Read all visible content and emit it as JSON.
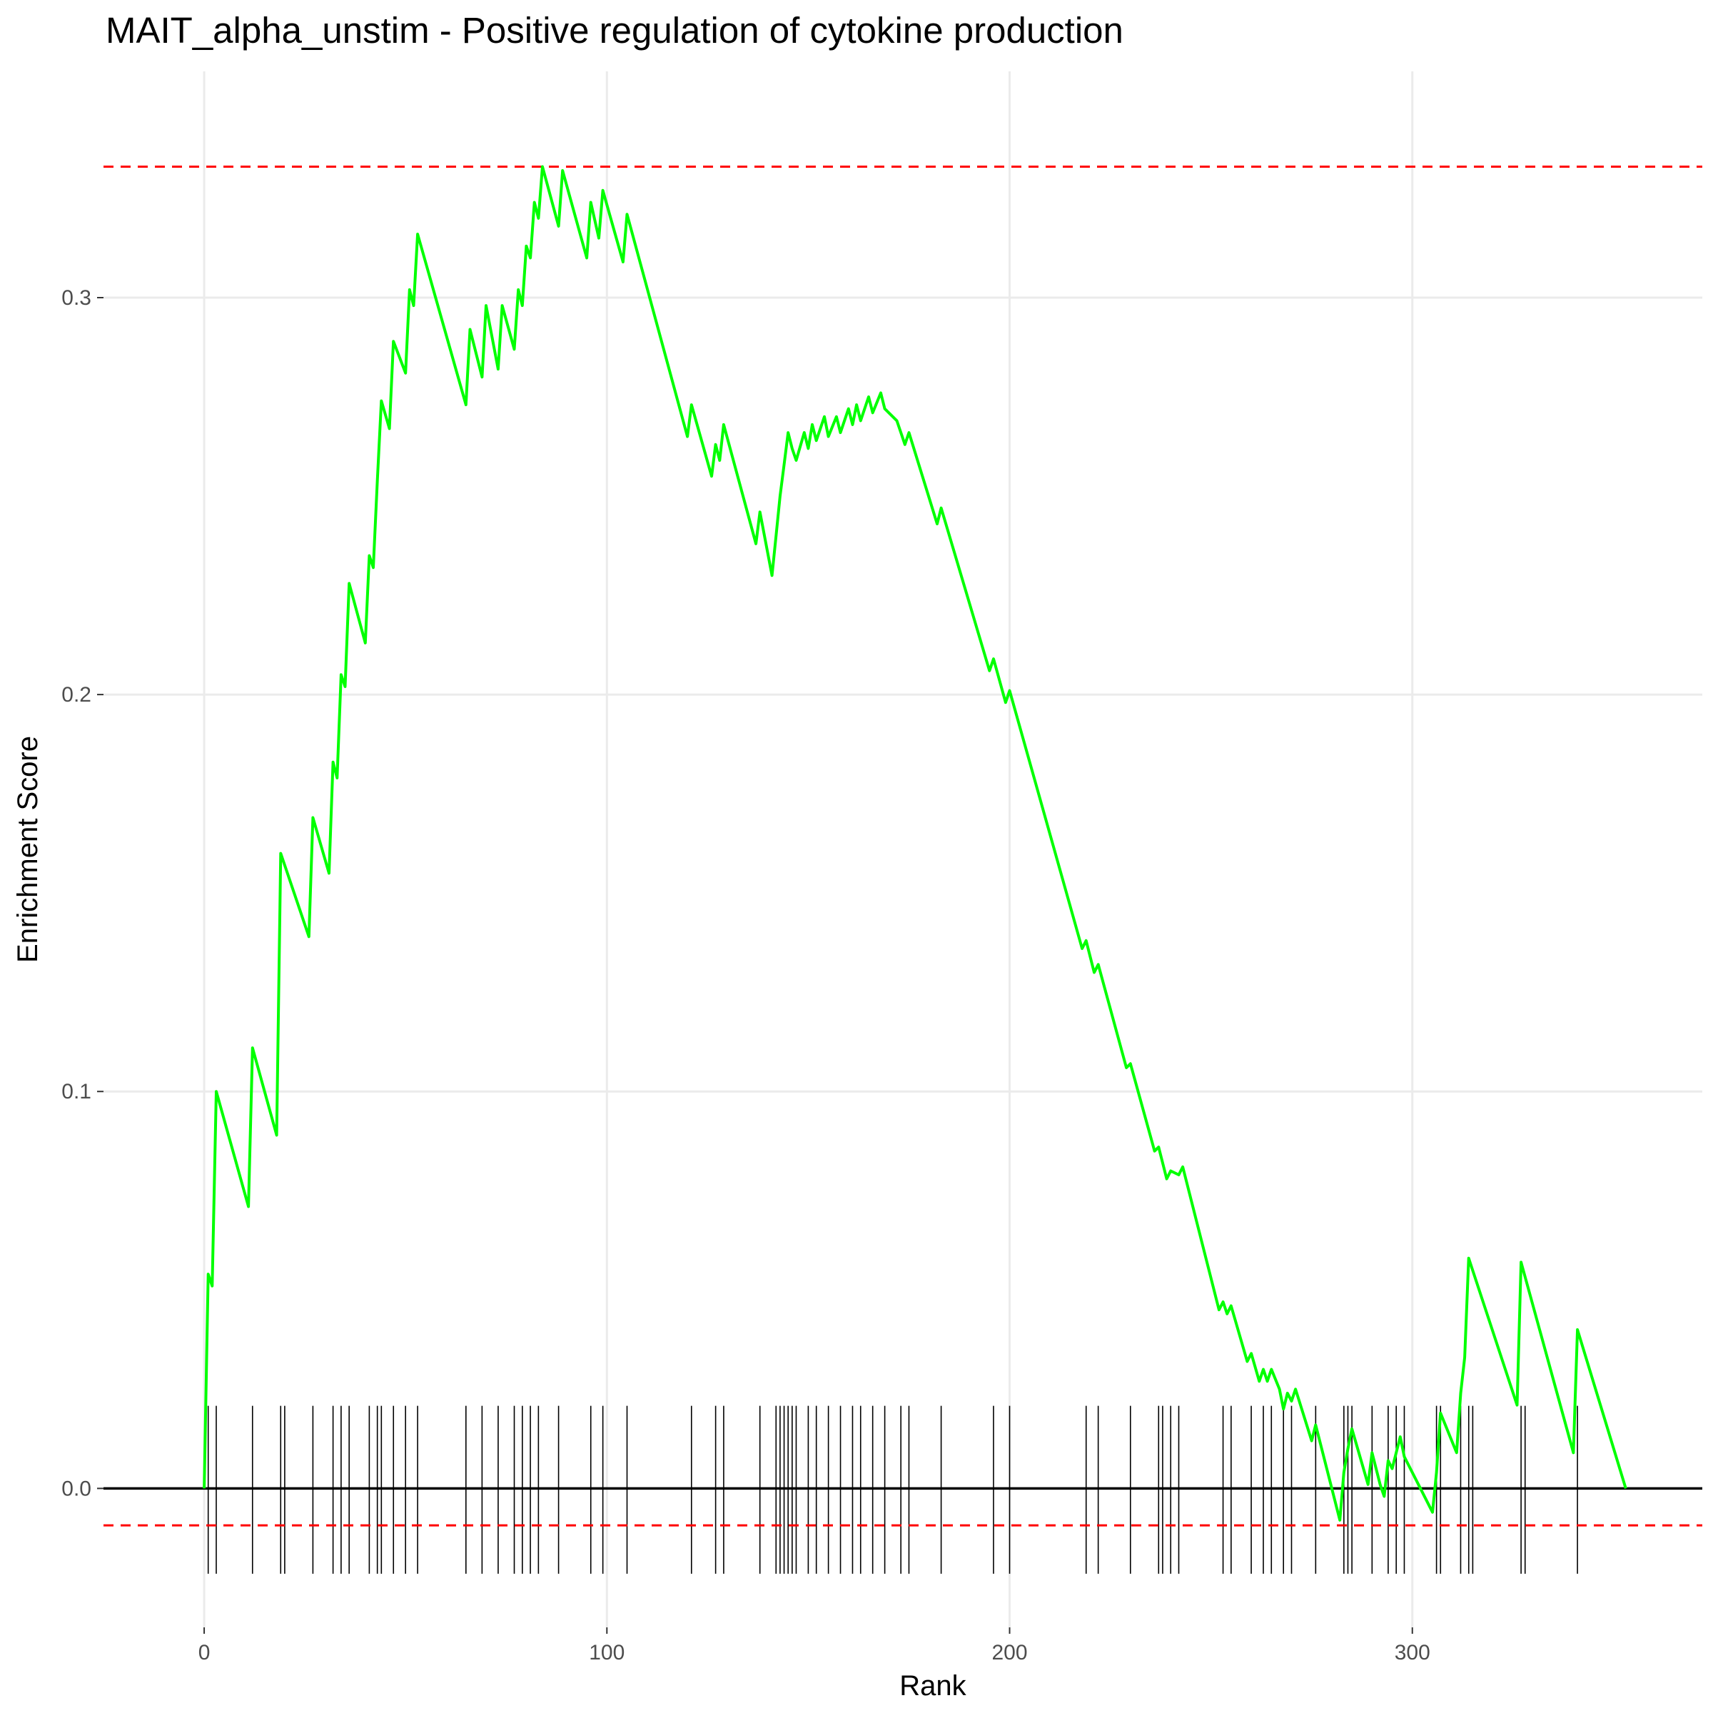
{
  "chart_data": {
    "type": "line",
    "title": "MAIT_alpha_unstim - Positive regulation of cytokine production",
    "xlabel": "Rank",
    "ylabel": "Enrichment Score",
    "xlim": [
      -25,
      372
    ],
    "ylim": [
      -0.035,
      0.357
    ],
    "x_ticks": [
      0,
      100,
      200,
      300
    ],
    "y_ticks": [
      0.0,
      0.1,
      0.2,
      0.3
    ],
    "x_tick_labels": [
      "0",
      "100",
      "200",
      "300"
    ],
    "y_tick_labels": [
      "0.0",
      "0.1",
      "0.2",
      "0.3"
    ],
    "grid": true,
    "legend": "none",
    "colors": {
      "curve": "#00ff00",
      "threshold": "#ff0000",
      "zero_line": "#000000",
      "ticks": "#000000"
    },
    "thresholds": {
      "max": 0.333,
      "min": -0.0093
    },
    "series": [
      {
        "x": [
          0,
          1,
          2,
          3,
          11,
          12,
          18,
          19,
          26,
          27,
          31,
          32,
          33,
          34,
          35,
          36,
          40,
          41,
          42,
          43,
          44,
          46,
          47,
          50,
          51,
          52,
          53,
          65,
          66,
          69,
          70,
          73,
          74,
          77,
          78,
          79,
          80,
          81,
          82,
          83,
          84,
          88,
          89,
          95,
          96,
          98,
          99,
          104,
          105,
          120,
          121,
          126,
          127,
          128,
          129,
          137,
          138,
          141,
          142,
          143,
          144,
          145,
          146,
          147,
          149,
          150,
          151,
          152,
          154,
          155,
          157,
          158,
          160,
          161,
          162,
          163,
          165,
          166,
          168,
          169,
          172,
          173,
          174,
          175,
          182,
          183,
          195,
          196,
          199,
          200,
          218,
          219,
          221,
          222,
          229,
          230,
          236,
          237,
          239,
          240,
          242,
          243,
          252,
          253,
          254,
          255,
          259,
          260,
          262,
          263,
          264,
          265,
          267,
          268,
          269,
          270,
          271,
          275,
          276,
          282,
          283,
          284,
          285,
          289,
          290,
          292,
          293,
          294,
          295,
          297,
          298,
          305,
          306,
          307,
          311,
          312,
          313,
          314,
          326,
          327,
          340,
          341,
          353
        ],
        "y": [
          0.0,
          0.054,
          0.051,
          0.1,
          0.071,
          0.111,
          0.089,
          0.16,
          0.139,
          0.169,
          0.155,
          0.183,
          0.179,
          0.205,
          0.202,
          0.228,
          0.213,
          0.235,
          0.232,
          0.254,
          0.274,
          0.267,
          0.289,
          0.281,
          0.302,
          0.298,
          0.316,
          0.273,
          0.292,
          0.28,
          0.298,
          0.282,
          0.298,
          0.287,
          0.302,
          0.298,
          0.313,
          0.31,
          0.324,
          0.32,
          0.333,
          0.318,
          0.332,
          0.31,
          0.324,
          0.315,
          0.327,
          0.309,
          0.321,
          0.265,
          0.273,
          0.255,
          0.263,
          0.259,
          0.268,
          0.238,
          0.246,
          0.23,
          0.24,
          0.25,
          0.258,
          0.266,
          0.262,
          0.259,
          0.266,
          0.262,
          0.268,
          0.264,
          0.27,
          0.265,
          0.27,
          0.266,
          0.272,
          0.268,
          0.273,
          0.269,
          0.275,
          0.271,
          0.276,
          0.272,
          0.269,
          0.266,
          0.263,
          0.266,
          0.243,
          0.247,
          0.206,
          0.209,
          0.198,
          0.201,
          0.136,
          0.138,
          0.13,
          0.132,
          0.106,
          0.107,
          0.085,
          0.086,
          0.078,
          0.08,
          0.079,
          0.081,
          0.045,
          0.047,
          0.044,
          0.046,
          0.032,
          0.034,
          0.027,
          0.03,
          0.027,
          0.03,
          0.025,
          0.02,
          0.024,
          0.022,
          0.025,
          0.012,
          0.016,
          -0.008,
          0.004,
          0.01,
          0.015,
          0.001,
          0.009,
          0.001,
          -0.002,
          0.007,
          0.005,
          0.013,
          0.008,
          -0.006,
          0.004,
          0.019,
          0.009,
          0.024,
          0.033,
          0.058,
          0.021,
          0.057,
          0.009,
          0.04,
          0.0
        ]
      }
    ],
    "hit_ranks": [
      1,
      3,
      12,
      19,
      20,
      27,
      32,
      34,
      36,
      41,
      43,
      44,
      47,
      50,
      53,
      65,
      69,
      73,
      77,
      79,
      81,
      83,
      88,
      96,
      99,
      105,
      121,
      127,
      129,
      138,
      142,
      143,
      144,
      145,
      146,
      147,
      150,
      152,
      155,
      158,
      161,
      163,
      166,
      169,
      173,
      175,
      183,
      196,
      200,
      219,
      222,
      230,
      237,
      238,
      240,
      242,
      253,
      255,
      260,
      263,
      265,
      268,
      270,
      276,
      283,
      284,
      285,
      290,
      294,
      296,
      298,
      306,
      307,
      312,
      314,
      315,
      327,
      328,
      341
    ]
  }
}
